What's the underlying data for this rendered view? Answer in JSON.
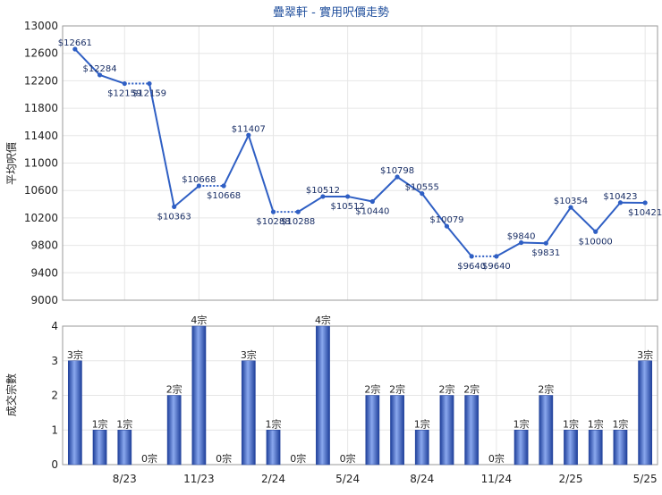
{
  "chart_data": [
    {
      "type": "line",
      "title": "疊翠軒 - 實用呎價走勢",
      "ylabel": "平均呎價",
      "ylim": [
        9000,
        13000
      ],
      "yticks": [
        9000,
        9400,
        9800,
        10200,
        10600,
        11000,
        11400,
        11800,
        12200,
        12600,
        13000
      ],
      "grid": true,
      "series": [
        {
          "color": "#2f5fc4",
          "values": [
            12661,
            12284,
            12159,
            12159,
            10363,
            10668,
            10668,
            11407,
            10288,
            10288,
            10512,
            10512,
            10440,
            10798,
            10555,
            10079,
            9640,
            9640,
            9840,
            9831,
            10354,
            10000,
            10423,
            10421
          ],
          "labels": [
            "$12661",
            "$12284",
            "$12159",
            "$12159",
            "$10363",
            "$10668",
            "$10668",
            "$11407",
            "$10288",
            "$10288",
            "$10512",
            "$10512",
            "$10440",
            "$10798",
            "$10555",
            "$10079",
            "$9640",
            "$9640",
            "$9840",
            "$9831",
            "$10354",
            "$10000",
            "$10423",
            "$10421"
          ],
          "dotted_segments": [
            2,
            5,
            8,
            16
          ]
        }
      ]
    },
    {
      "type": "bar",
      "ylabel": "成交宗數",
      "ylim": [
        0,
        4
      ],
      "yticks": [
        0,
        1,
        2,
        3,
        4
      ],
      "grid": true,
      "categories": [
        "8/23",
        "11/23",
        "2/24",
        "5/24",
        "8/24",
        "11/24",
        "2/25",
        "5/25"
      ],
      "values": [
        3,
        1,
        1,
        0,
        2,
        4,
        0,
        3,
        1,
        0,
        4,
        0,
        2,
        2,
        1,
        2,
        2,
        0,
        1,
        2,
        1,
        1,
        1,
        3
      ],
      "labels": [
        "3宗",
        "1宗",
        "1宗",
        "0宗",
        "2宗",
        "4宗",
        "0宗",
        "3宗",
        "1宗",
        "0宗",
        "4宗",
        "0宗",
        "2宗",
        "2宗",
        "1宗",
        "2宗",
        "2宗",
        "0宗",
        "1宗",
        "2宗",
        "1宗",
        "1宗",
        "1宗",
        "3宗"
      ],
      "bar_color": "#3b63c9"
    }
  ]
}
